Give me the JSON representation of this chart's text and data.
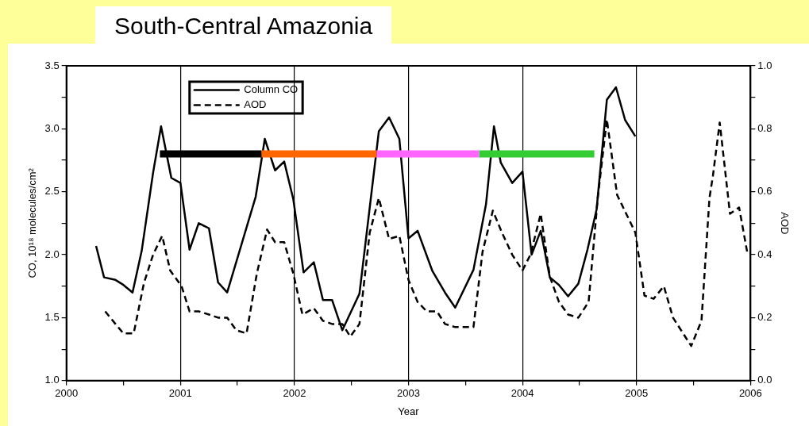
{
  "chart_data": {
    "type": "line",
    "title": "South-Central Amazonia",
    "xlabel": "Year",
    "ylabel": "CO, 10¹⁸ molecules/cm²",
    "y2label": "AOD",
    "xlim": [
      2000,
      2006
    ],
    "xticks": [
      2000,
      {
        "value": 2000.5,
        "label": null
      },
      2001,
      {
        "value": 2001.5,
        "label": null
      },
      2002,
      {
        "value": 2002.5,
        "label": null
      },
      2003,
      {
        "value": 2003.5,
        "label": null
      },
      2004,
      {
        "value": 2004.5,
        "label": null
      },
      2005,
      {
        "value": 2005.5,
        "label": null
      },
      2006
    ],
    "ylim": [
      1,
      3.5
    ],
    "yticks": [
      {
        "value": 1,
        "label": "1.0"
      },
      {
        "value": 1.25,
        "label": null
      },
      1.5,
      {
        "value": 1.75,
        "label": null
      },
      {
        "value": 2,
        "label": "2.0"
      },
      {
        "value": 2.25,
        "label": null
      },
      2.5,
      {
        "value": 2.75,
        "label": null
      },
      {
        "value": 3,
        "label": "3.0"
      },
      {
        "value": 3.25,
        "label": null
      },
      3.5
    ],
    "y2lim": [
      0,
      1
    ],
    "y2ticks": [
      {
        "value": 0,
        "label": "0.0"
      },
      {
        "value": 0.1,
        "label": null
      },
      0.2,
      {
        "value": 0.3,
        "label": null
      },
      0.4,
      {
        "value": 0.5,
        "label": null
      },
      0.6,
      {
        "value": 0.7,
        "label": null
      },
      0.8,
      {
        "value": 0.9,
        "label": null
      },
      {
        "value": 1,
        "label": "1.0"
      }
    ],
    "grid": "x",
    "legend": "top left",
    "marker": "none",
    "series": [
      {
        "color": "#000000",
        "x": [
          2000.82,
          2001.71
        ],
        "values": [
          2.8,
          2.8
        ]
      },
      {
        "color": "#ff6600",
        "x": [
          2001.71,
          2002.72
        ],
        "values": [
          2.8,
          2.8
        ]
      },
      {
        "color": "#ff66ff",
        "x": [
          2002.72,
          2003.62
        ],
        "values": [
          2.8,
          2.8
        ]
      },
      {
        "color": "#33cc33",
        "x": [
          2003.62,
          2004.63
        ],
        "values": [
          2.8,
          2.8
        ]
      },
      {
        "name": "Column CO",
        "color": "#000000",
        "line_style": "solid",
        "x": [
          2000.26,
          2000.33,
          2000.43,
          2000.5,
          2000.58,
          2000.66,
          2000.76,
          2000.83,
          2000.92,
          2001.0,
          2001.08,
          2001.16,
          2001.25,
          2001.33,
          2001.41,
          2001.66,
          2001.74,
          2001.83,
          2001.91,
          2001.99,
          2002.08,
          2002.17,
          2002.25,
          2002.33,
          2002.42,
          2002.57,
          2002.74,
          2002.83,
          2002.92,
          2003.0,
          2003.08,
          2003.21,
          2003.32,
          2003.41,
          2003.57,
          2003.68,
          2003.75,
          2003.81,
          2003.91,
          2004.0,
          2004.08,
          2004.16,
          2004.24,
          2004.32,
          2004.4,
          2004.49,
          2004.57,
          2004.65,
          2004.74,
          2004.82,
          2004.9,
          2004.99
        ],
        "values": [
          2.07,
          1.82,
          1.8,
          1.76,
          1.7,
          2.03,
          2.65,
          3.02,
          2.61,
          2.57,
          2.04,
          2.25,
          2.21,
          1.78,
          1.7,
          2.46,
          2.92,
          2.67,
          2.74,
          2.44,
          1.86,
          1.94,
          1.64,
          1.64,
          1.4,
          1.69,
          2.98,
          3.09,
          2.92,
          2.13,
          2.19,
          1.87,
          1.7,
          1.58,
          1.88,
          2.4,
          3.02,
          2.73,
          2.57,
          2.66,
          2.0,
          2.19,
          1.82,
          1.76,
          1.67,
          1.77,
          2.04,
          2.36,
          3.23,
          3.33,
          3.07,
          2.94
        ]
      },
      {
        "name": "AOD",
        "color": "#000000",
        "line_style": "dashed",
        "axis": "y2",
        "x": [
          2000.34,
          2000.43,
          2000.5,
          2000.59,
          2000.68,
          2000.76,
          2000.84,
          2000.91,
          2001.01,
          2001.08,
          2001.16,
          2001.25,
          2001.33,
          2001.41,
          2001.49,
          2001.58,
          2001.67,
          2001.76,
          2001.83,
          2001.91,
          2001.99,
          2002.07,
          2002.17,
          2002.25,
          2002.33,
          2002.42,
          2002.49,
          2002.57,
          2002.66,
          2002.74,
          2002.83,
          2002.92,
          2003.0,
          2003.08,
          2003.16,
          2003.25,
          2003.32,
          2003.41,
          2003.49,
          2003.57,
          2003.65,
          2003.74,
          2003.82,
          2003.91,
          2004.0,
          2004.07,
          2004.16,
          2004.24,
          2004.32,
          2004.4,
          2004.49,
          2004.58,
          2004.66,
          2004.74,
          2004.83,
          2004.91,
          2004.99,
          2005.07,
          2005.15,
          2005.24,
          2005.32,
          2005.48,
          2005.57,
          2005.64,
          2005.67,
          2005.73,
          2005.82,
          2005.9,
          2005.97
        ],
        "values": [
          0.22,
          0.18,
          0.15,
          0.15,
          0.31,
          0.4,
          0.46,
          0.35,
          0.3,
          0.22,
          0.22,
          0.21,
          0.2,
          0.2,
          0.16,
          0.15,
          0.34,
          0.48,
          0.44,
          0.44,
          0.34,
          0.21,
          0.23,
          0.19,
          0.18,
          0.18,
          0.14,
          0.18,
          0.47,
          0.58,
          0.45,
          0.46,
          0.32,
          0.25,
          0.22,
          0.22,
          0.18,
          0.17,
          0.17,
          0.17,
          0.41,
          0.54,
          0.47,
          0.4,
          0.35,
          0.4,
          0.53,
          0.33,
          0.25,
          0.21,
          0.2,
          0.25,
          0.58,
          0.83,
          0.59,
          0.53,
          0.47,
          0.27,
          0.26,
          0.3,
          0.2,
          0.11,
          0.19,
          0.58,
          0.65,
          0.82,
          0.53,
          0.55,
          0.41
        ]
      }
    ]
  }
}
